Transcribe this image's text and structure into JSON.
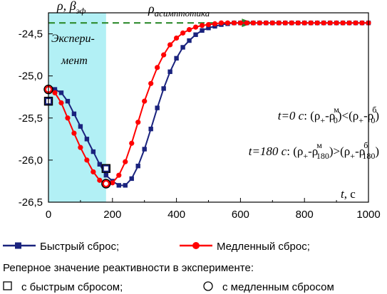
{
  "chart_data": {
    "type": "line",
    "y_axis_label": {
      "main": "ρ, β",
      "sub": "эф"
    },
    "x_axis_label": {
      "main": "t",
      "unit": ", с"
    },
    "xlim": [
      0,
      1000
    ],
    "ylim": [
      -26.5,
      -24.25
    ],
    "x_ticks": [
      0,
      200,
      400,
      600,
      800,
      1000
    ],
    "y_ticks": [
      -24.5,
      -25.0,
      -25.5,
      -26.0,
      -26.5
    ],
    "y_tick_labels": [
      "-24,5",
      "-25,0",
      "-25,5",
      "-26,0",
      "-26,5"
    ],
    "experiment_region": {
      "x_from": 0,
      "x_to": 180,
      "label_line1": "Экспери-",
      "label_line2": "мент"
    },
    "asymptote": {
      "y": -24.37,
      "label_main": "ρ",
      "label_sub": "асимптотика"
    },
    "series": [
      {
        "name": "Быстрый сброс",
        "color": "#1a237e",
        "marker": "square",
        "x": [
          0,
          20,
          40,
          60,
          80,
          100,
          120,
          140,
          160,
          180,
          200,
          220,
          240,
          260,
          280,
          300,
          320,
          340,
          360,
          380,
          400,
          420,
          440,
          460,
          480,
          500,
          520,
          540,
          560,
          580,
          600,
          620,
          640,
          660,
          680,
          700,
          720,
          740,
          760,
          780,
          800,
          820,
          840,
          860,
          880,
          900,
          920,
          940,
          960,
          980,
          1000
        ],
        "y": [
          -25.16,
          -25.16,
          -25.2,
          -25.3,
          -25.45,
          -25.6,
          -25.75,
          -25.9,
          -26.05,
          -26.18,
          -26.25,
          -26.3,
          -26.3,
          -26.22,
          -26.07,
          -25.87,
          -25.63,
          -25.38,
          -25.15,
          -24.95,
          -24.79,
          -24.66,
          -24.58,
          -24.51,
          -24.46,
          -24.43,
          -24.41,
          -24.39,
          -24.38,
          -24.37,
          -24.37,
          -24.37,
          -24.37,
          -24.37,
          -24.37,
          -24.37,
          -24.37,
          -24.37,
          -24.37,
          -24.37,
          -24.37,
          -24.37,
          -24.37,
          -24.37,
          -24.37,
          -24.37,
          -24.37,
          -24.37,
          -24.37,
          -24.37,
          -24.37
        ]
      },
      {
        "name": "Медленный сброс",
        "color": "#ff0000",
        "marker": "circle",
        "x": [
          0,
          20,
          40,
          60,
          80,
          100,
          120,
          140,
          160,
          180,
          200,
          220,
          240,
          260,
          280,
          300,
          320,
          340,
          360,
          380,
          400,
          420,
          440,
          460,
          480,
          500,
          520,
          540,
          560,
          580,
          600,
          620,
          640,
          660,
          680,
          700,
          720,
          740,
          760,
          780,
          800,
          820,
          840,
          860,
          880,
          900,
          920,
          940,
          960,
          980,
          1000
        ],
        "y": [
          -25.16,
          -25.2,
          -25.32,
          -25.5,
          -25.68,
          -25.85,
          -26.0,
          -26.14,
          -26.24,
          -26.28,
          -26.27,
          -26.18,
          -26.02,
          -25.8,
          -25.55,
          -25.3,
          -25.09,
          -24.9,
          -24.75,
          -24.63,
          -24.55,
          -24.49,
          -24.45,
          -24.42,
          -24.4,
          -24.39,
          -24.38,
          -24.37,
          -24.37,
          -24.37,
          -24.37,
          -24.37,
          -24.37,
          -24.37,
          -24.37,
          -24.37,
          -24.37,
          -24.37,
          -24.37,
          -24.37,
          -24.37,
          -24.37,
          -24.37,
          -24.37,
          -24.37,
          -24.37,
          -24.37,
          -24.37,
          -24.37,
          -24.37,
          -24.37
        ]
      }
    ],
    "reference_points": [
      {
        "x": 0,
        "y": -25.3,
        "marker": "square",
        "color": "#1a237e"
      },
      {
        "x": 180,
        "y": -26.1,
        "marker": "square",
        "color": "#1a237e"
      },
      {
        "x": 0,
        "y": -25.16,
        "marker": "circle",
        "color": "#ff0000"
      },
      {
        "x": 180,
        "y": -26.28,
        "marker": "circle",
        "color": "#ff0000"
      }
    ],
    "annotations": [
      {
        "t": "t=0 с",
        "text": ": (ρ",
        "sub1": "+",
        "mid": "-ρ",
        "sup2": "м",
        "sub2": "0",
        "rel": ")<(ρ",
        "sub3": "+",
        "mid2": "-ρ",
        "sup4": "б",
        "sub4": "0",
        "end": ")"
      },
      {
        "t": "t=180 с",
        "text": ": (ρ",
        "sub1": "+",
        "mid": "-ρ",
        "sup2": "м",
        "sub2": "180",
        "rel": ")>(ρ",
        "sub3": "+",
        "mid2": "-ρ",
        "sup4": "б",
        "sub4": "180",
        "end": ")"
      }
    ],
    "legend": {
      "entries": [
        {
          "label": "Быстрый сброс;",
          "color": "#1a237e",
          "marker": "square"
        },
        {
          "label": "Медленный сброс;",
          "color": "#ff0000",
          "marker": "circle"
        }
      ],
      "reference_title": "Реперное значение реактивности в эксперименте:",
      "reference_entries": [
        {
          "label": "с быстрым сбросом;",
          "marker": "open-square"
        },
        {
          "label": "с медленным сбросом",
          "marker": "open-circle"
        }
      ]
    },
    "colors": {
      "shade": "#b2f0f5",
      "asymptote": "#2e8b2e"
    }
  }
}
